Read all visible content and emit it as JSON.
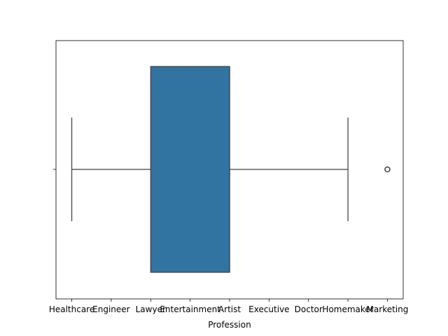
{
  "chart_data": {
    "type": "box",
    "orientation": "horizontal",
    "title": "",
    "xlabel": "Profession",
    "ylabel": "",
    "categories": [
      "Healthcare",
      "Engineer",
      "Lawyer",
      "Entertainment",
      "Artist",
      "Executive",
      "Doctor",
      "Homemaker",
      "Marketing"
    ],
    "category_positions": [
      0,
      1,
      2,
      3,
      4,
      5,
      6,
      7,
      8
    ],
    "xlim": [
      -0.4,
      8.4
    ],
    "box": {
      "whisker_low": 0,
      "q1": 2,
      "median": 4,
      "q3": 4,
      "whisker_high": 7,
      "outliers": [
        8
      ]
    },
    "colors": {
      "box_fill": "#3274a1",
      "line": "#3f3f3f",
      "axes": "#000000",
      "background": "#ffffff"
    },
    "grid": false
  }
}
